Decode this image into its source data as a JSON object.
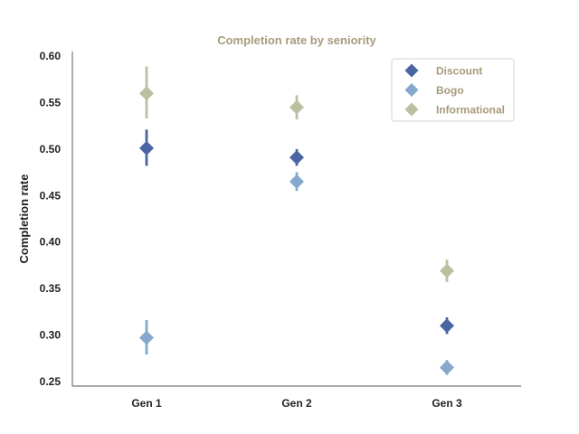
{
  "chart_data": {
    "type": "scatter",
    "title": "Completion rate by seniority",
    "xlabel": "",
    "ylabel": "Completion rate",
    "categories": [
      "Gen 1",
      "Gen 2",
      "Gen 3"
    ],
    "ylim": [
      0.245,
      0.605
    ],
    "yticks": [
      "0.25",
      "0.30",
      "0.35",
      "0.40",
      "0.45",
      "0.50",
      "0.55",
      "0.60"
    ],
    "legend_position": "top-right",
    "series": [
      {
        "name": "Discount",
        "color": "#4a66a2",
        "values": [
          0.501,
          0.491,
          0.31
        ],
        "err_low": [
          0.482,
          0.482,
          0.301
        ],
        "err_high": [
          0.521,
          0.5,
          0.319
        ]
      },
      {
        "name": "Bogo",
        "color": "#86a8cc",
        "values": [
          0.297,
          0.465,
          0.265
        ],
        "err_low": [
          0.279,
          0.455,
          0.257
        ],
        "err_high": [
          0.316,
          0.475,
          0.273
        ]
      },
      {
        "name": "Informational",
        "color": "#bcc0a0",
        "values": [
          0.56,
          0.545,
          0.369
        ],
        "err_low": [
          0.533,
          0.532,
          0.357
        ],
        "err_high": [
          0.589,
          0.558,
          0.381
        ]
      }
    ],
    "title_color": "#a99a7c",
    "axis_color": "#777777"
  }
}
